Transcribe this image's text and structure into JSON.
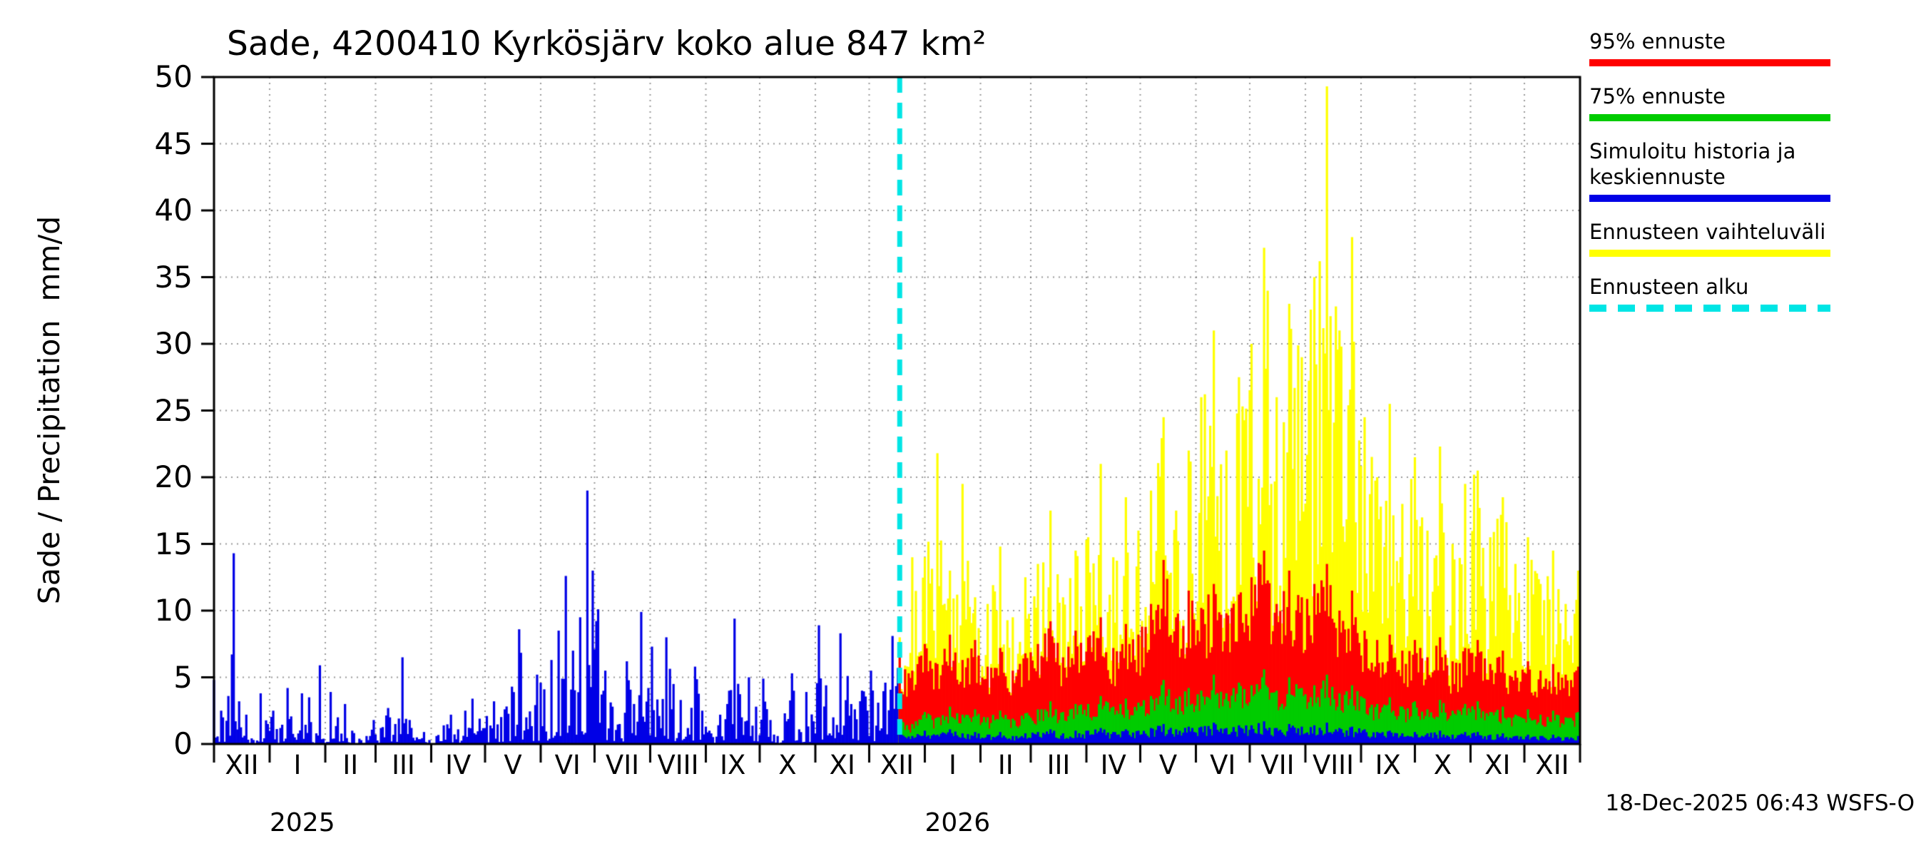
{
  "chart_data": {
    "type": "bar",
    "title": "Sade, 4200410 Kyrkösjärv koko alue 847 km²",
    "ylabel": "Sade / Precipitation  mm/d",
    "ylim": [
      0,
      50
    ],
    "yticks": [
      0,
      5,
      10,
      15,
      20,
      25,
      30,
      35,
      40,
      45,
      50
    ],
    "grid": true,
    "legend_position": "right-outside",
    "x_axis": {
      "unit": "day",
      "total_days": 761,
      "month_labels": [
        "XII",
        "I",
        "II",
        "III",
        "IV",
        "V",
        "VI",
        "VII",
        "VIII",
        "IX",
        "X",
        "XI",
        "XII",
        "I",
        "II",
        "III",
        "IV",
        "V",
        "VI",
        "VII",
        "VIII",
        "IX",
        "X",
        "XI",
        "XII"
      ],
      "month_boundary_days": [
        0,
        31,
        62,
        90,
        121,
        151,
        182,
        212,
        243,
        274,
        304,
        335,
        365,
        396,
        427,
        455,
        486,
        516,
        547,
        577,
        608,
        639,
        669,
        700,
        730,
        761
      ],
      "year_labels": [
        {
          "text": "2025",
          "day": 31
        },
        {
          "text": "2026",
          "day": 396
        }
      ]
    },
    "forecast_start_day": 382,
    "forecast_start_label": "Ennusteen alku",
    "forecast_days": [
      382,
      389,
      396,
      403,
      410,
      417,
      424,
      431,
      438,
      445,
      452,
      459,
      466,
      473,
      480,
      487,
      494,
      501,
      508,
      515,
      522,
      529,
      536,
      543,
      550,
      557,
      564,
      571,
      578,
      585,
      592,
      599,
      606,
      613,
      620,
      627,
      634,
      641,
      648,
      655,
      662,
      669,
      676,
      683,
      690,
      697,
      704,
      711,
      718,
      725,
      732,
      739,
      746,
      753,
      760
    ],
    "series": {
      "history": {
        "name": "Simuloitu historia",
        "color": "#0000e6",
        "days": [
          0,
          4,
          8,
          11,
          14,
          18,
          22,
          26,
          30,
          33,
          37,
          41,
          45,
          49,
          53,
          57,
          59,
          61,
          65,
          69,
          73,
          77,
          81,
          85,
          89,
          93,
          97,
          101,
          105,
          109,
          113,
          117,
          120,
          124,
          128,
          132,
          136,
          140,
          144,
          148,
          152,
          156,
          162,
          166,
          170,
          174,
          180,
          184,
          188,
          192,
          196,
          200,
          204,
          208,
          211,
          214,
          218,
          222,
          226,
          230,
          234,
          238,
          242,
          244,
          248,
          252,
          256,
          260,
          264,
          268,
          272,
          276,
          282,
          286,
          290,
          294,
          298,
          302,
          306,
          310,
          314,
          318,
          322,
          326,
          330,
          334,
          337,
          341,
          345,
          349,
          353,
          357,
          361,
          366,
          370,
          374,
          378,
          381
        ],
        "values": [
          4.8,
          2.5,
          3.6,
          14.3,
          3.2,
          2.2,
          0.3,
          3.8,
          1.5,
          2.5,
          1.2,
          4.2,
          0.5,
          3.8,
          3.5,
          0.8,
          5.9,
          0.4,
          3.9,
          2.0,
          3.0,
          1.0,
          0.4,
          0.6,
          1.8,
          1.2,
          2.7,
          1.5,
          6.5,
          1.8,
          0.5,
          0.9,
          0.3,
          0.6,
          1.4,
          2.2,
          1.1,
          2.5,
          3.4,
          1.9,
          2.1,
          3.2,
          2.6,
          4.3,
          8.6,
          2.0,
          5.2,
          4.1,
          6.3,
          8.5,
          12.6,
          7.0,
          9.5,
          19.0,
          13.0,
          10.1,
          5.5,
          2.8,
          1.5,
          6.2,
          3.0,
          9.9,
          4.2,
          7.3,
          2.1,
          8.0,
          4.5,
          3.3,
          1.2,
          5.8,
          2.5,
          1.0,
          2.2,
          3.0,
          9.4,
          2.0,
          5.0,
          2.8,
          4.9,
          1.8,
          0.6,
          2.3,
          5.3,
          1.1,
          3.9,
          1.7,
          8.9,
          4.4,
          2.0,
          8.3,
          5.1,
          2.6,
          4.0,
          5.5,
          3.1,
          4.6,
          8.1,
          5.7
        ]
      },
      "range_max": {
        "name": "Ennusteen vaihteluväli",
        "color": "#ffff00",
        "values": [
          8,
          14,
          14,
          21.8,
          13,
          19.5,
          11,
          10.5,
          14.8,
          9.5,
          12.5,
          13.5,
          17.5,
          11,
          14.5,
          15.5,
          21,
          14,
          18.5,
          16,
          19,
          24.5,
          17.5,
          22,
          26,
          31,
          22,
          27.5,
          30,
          37.2,
          26,
          33,
          29,
          35,
          49.3,
          31,
          38,
          24.5,
          20,
          25.5,
          18,
          21.5,
          16,
          22.3,
          15,
          19.5,
          20.5,
          15.5,
          18.5,
          13.5,
          15.5,
          12,
          14.5,
          10.5,
          13
        ]
      },
      "p95": {
        "name": "95% ennuste",
        "color": "#ff0000",
        "values": [
          6.5,
          5.5,
          7.5,
          6,
          8.2,
          6.3,
          7.8,
          5.8,
          7.2,
          5.5,
          6.8,
          7.5,
          9.2,
          6.5,
          8.5,
          8,
          9.5,
          7.2,
          9,
          8.2,
          10.5,
          13.8,
          9.5,
          11.5,
          10.2,
          12,
          9.8,
          11.2,
          12.5,
          14.5,
          10.5,
          13,
          11,
          12,
          13.5,
          10,
          11.5,
          8.5,
          7.8,
          8.2,
          7,
          7.8,
          6.5,
          8,
          6.2,
          7.2,
          7.8,
          6,
          7,
          5.5,
          6.2,
          5.5,
          6,
          5.2,
          5.8
        ]
      },
      "p75": {
        "name": "75% ennuste",
        "color": "#00cc00",
        "values": [
          1.8,
          1.5,
          2.4,
          2,
          2.8,
          2.2,
          2.6,
          2,
          2.5,
          1.9,
          2.3,
          2.6,
          3.2,
          2.4,
          3,
          3,
          3.6,
          2.8,
          3.4,
          3.1,
          3.6,
          4.8,
          3.4,
          4.2,
          4,
          5.2,
          3.8,
          4.6,
          4.4,
          5.6,
          4,
          5,
          4.2,
          4.4,
          5.2,
          3.8,
          4.4,
          3.4,
          3,
          3.5,
          2.8,
          3.2,
          2.6,
          3.3,
          2.5,
          3,
          3.2,
          2.4,
          2.8,
          2.2,
          2.6,
          2.2,
          2.5,
          2,
          2.4
        ]
      },
      "median": {
        "name": "Keskiennuste",
        "color": "#0000e6",
        "values": [
          0.8,
          0.6,
          1,
          0.7,
          1.1,
          0.8,
          0.9,
          0.7,
          0.9,
          0.6,
          0.8,
          0.9,
          1.1,
          0.8,
          1,
          1,
          1.2,
          0.9,
          1.1,
          1,
          1.2,
          1.5,
          1.1,
          1.3,
          1.3,
          1.6,
          1.2,
          1.4,
          1.4,
          1.7,
          1.2,
          1.5,
          1.3,
          1.4,
          1.6,
          1.2,
          1.3,
          1.1,
          0.9,
          1,
          0.8,
          0.9,
          0.8,
          1,
          0.7,
          0.9,
          0.9,
          0.7,
          0.8,
          0.6,
          0.7,
          0.6,
          0.7,
          0.5,
          0.6
        ]
      }
    },
    "forecast_line": {
      "color": "#00e5e5",
      "style": "dashed"
    }
  },
  "legend": {
    "entries": [
      {
        "label": "95% ennuste",
        "color": "#ff0000",
        "style": "solid"
      },
      {
        "label": "75% ennuste",
        "color": "#00cc00",
        "style": "solid"
      },
      {
        "label": "Simuloitu historia ja keskiennuste",
        "color": "#0000e6",
        "style": "solid"
      },
      {
        "label": "Ennusteen vaihteluväli",
        "color": "#ffff00",
        "style": "solid"
      },
      {
        "label": "Ennusteen alku",
        "color": "#00e5e5",
        "style": "dashed"
      }
    ]
  },
  "footer": {
    "timestamp": "18-Dec-2025 06:43 WSFS-O"
  }
}
